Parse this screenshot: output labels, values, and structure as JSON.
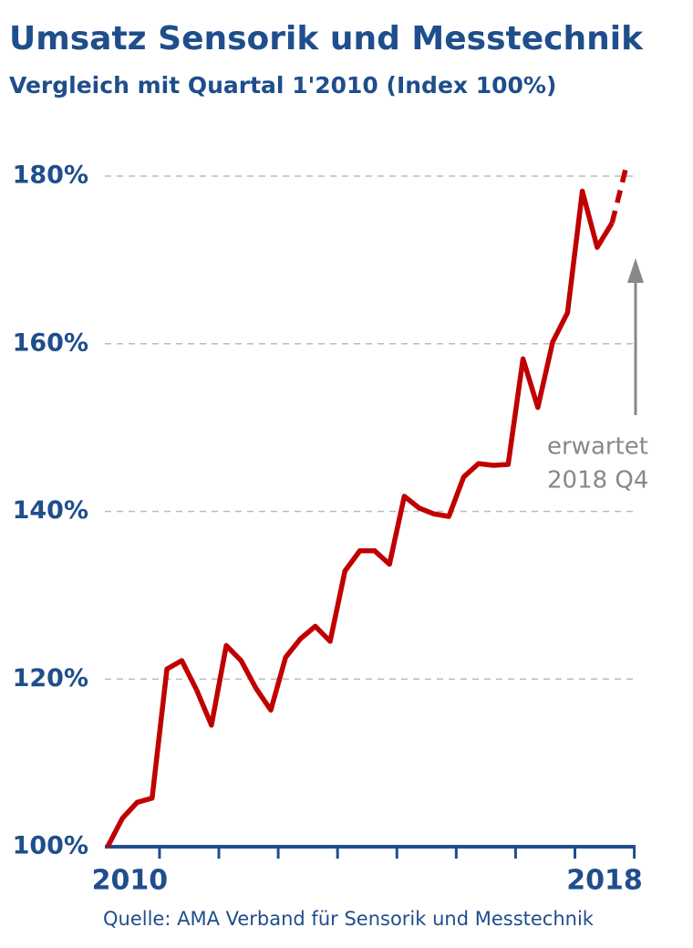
{
  "chart_data": {
    "type": "line",
    "title": "Umsatz Sensorik und Messtechnik",
    "subtitle": "Vergleich mit Quartal 1'2010  (Index 100%)",
    "source": "Quelle: AMA Verband für Sensorik und Messtechnik",
    "annotation": [
      "erwartet",
      "2018  Q4"
    ],
    "categories": [
      "2010",
      null,
      null,
      null,
      null,
      null,
      null,
      null,
      null,
      null,
      null,
      null,
      null,
      null,
      null,
      null,
      null,
      null,
      null,
      null,
      null,
      null,
      null,
      null,
      null,
      null,
      null,
      null,
      null,
      null,
      null,
      null,
      null,
      null,
      null,
      "2018"
    ],
    "series": [
      {
        "color": "#c00000",
        "line_style": "solid",
        "values": [
          100,
          103.4,
          105.3,
          105.8,
          121.2,
          122.2,
          118.7,
          114.5,
          124.0,
          122.2,
          118.9,
          116.3,
          122.6,
          124.8,
          126.3,
          124.5,
          132.9,
          135.3,
          135.3,
          133.7,
          141.8,
          140.4,
          139.7,
          139.4,
          144.1,
          145.7,
          145.5,
          145.6,
          158.2,
          152.4,
          160.2,
          163.7,
          178.2,
          171.5,
          174.4,
          null
        ]
      },
      {
        "color": "#c00000",
        "line_style": "dashed",
        "values": [
          null,
          null,
          null,
          null,
          null,
          null,
          null,
          null,
          null,
          null,
          null,
          null,
          null,
          null,
          null,
          null,
          null,
          null,
          null,
          null,
          null,
          null,
          null,
          null,
          null,
          null,
          null,
          null,
          null,
          null,
          null,
          null,
          null,
          null,
          174.4,
          181.4
        ]
      }
    ],
    "ylim": [
      100,
      180
    ],
    "yticks": [
      {
        "value": 100,
        "label": "100%"
      },
      {
        "value": 120,
        "label": "120%"
      },
      {
        "value": 140,
        "label": "140%"
      },
      {
        "value": 160,
        "label": "160%"
      },
      {
        "value": 180,
        "label": "180%"
      }
    ],
    "grid": true
  }
}
